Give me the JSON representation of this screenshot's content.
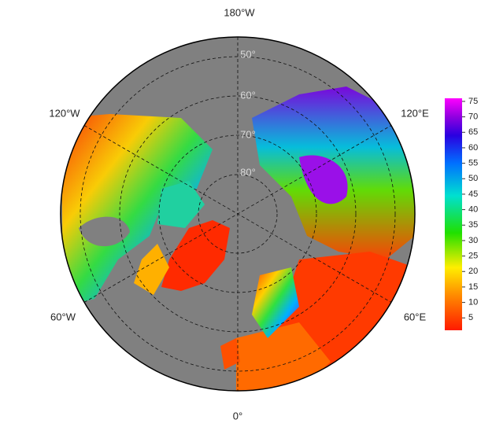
{
  "map": {
    "lon_labels": [
      "180°W",
      "120°W",
      "120°E",
      "60°W",
      "60°E",
      "0°"
    ],
    "lat_labels": [
      "50°",
      "60°",
      "70°",
      "80°"
    ]
  },
  "colorbar": {
    "lim": [
      1,
      76
    ],
    "ticks": [
      5,
      10,
      15,
      20,
      25,
      30,
      35,
      40,
      45,
      50,
      55,
      60,
      65,
      70,
      75
    ]
  }
}
